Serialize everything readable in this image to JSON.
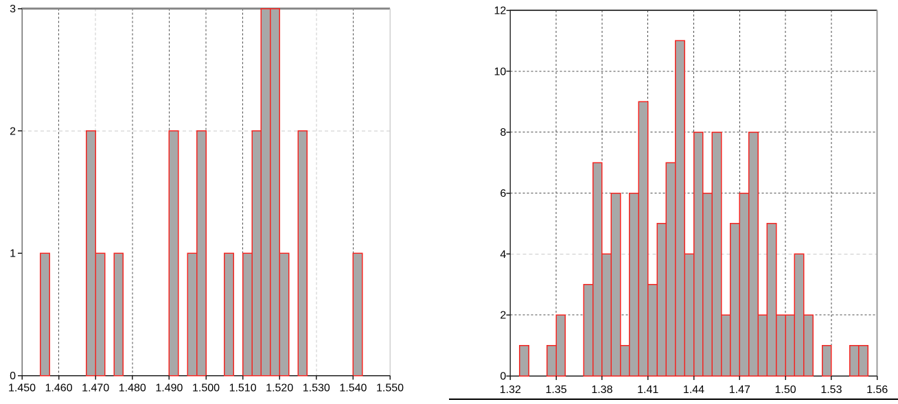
{
  "page": {
    "background": "#ffffff"
  },
  "panel_divider": {
    "present": true,
    "color": "#000000"
  },
  "style": {
    "bar_fill": "#a8a8a8",
    "bar_stroke": "#f42521",
    "grid_dark": "#4a4a4a",
    "grid_light": "#c9c9c9",
    "axis_color": "#1c1c1c",
    "left_plot_yaxis_color": "#6f6f6f",
    "left_plot_top_frame_color": "#8a8a8a",
    "left_plot_right_frame_color": "#cfcfcf",
    "right_plot_yaxis_color": "#2e2e2e",
    "right_plot_top_frame_color": "#3f3f3f",
    "right_plot_right_frame_color": "#9b9b9b",
    "tick_label_color": "#000000"
  },
  "chart_data": [
    {
      "type": "bar",
      "subtype": "histogram",
      "title": "",
      "xlabel": "",
      "ylabel": "",
      "xlim": [
        1.45,
        1.55
      ],
      "ylim": [
        0,
        3
      ],
      "grid": true,
      "legend_position": "none",
      "bin_width": 0.0025,
      "bars": [
        {
          "x0": 1.455,
          "count": 1
        },
        {
          "x0": 1.4675,
          "count": 2
        },
        {
          "x0": 1.47,
          "count": 1
        },
        {
          "x0": 1.475,
          "count": 1
        },
        {
          "x0": 1.49,
          "count": 2
        },
        {
          "x0": 1.495,
          "count": 1
        },
        {
          "x0": 1.4975,
          "count": 2
        },
        {
          "x0": 1.505,
          "count": 1
        },
        {
          "x0": 1.51,
          "count": 1
        },
        {
          "x0": 1.5125,
          "count": 2
        },
        {
          "x0": 1.515,
          "count": 3
        },
        {
          "x0": 1.5175,
          "count": 3
        },
        {
          "x0": 1.52,
          "count": 1
        },
        {
          "x0": 1.525,
          "count": 2
        },
        {
          "x0": 1.54,
          "count": 1
        }
      ],
      "x_ticks": [
        {
          "value": 1.45,
          "label": "1.450",
          "grid": "none"
        },
        {
          "value": 1.46,
          "label": "1.460",
          "grid": "dark"
        },
        {
          "value": 1.47,
          "label": "1.470",
          "grid": "light"
        },
        {
          "value": 1.48,
          "label": "1.480",
          "grid": "dark"
        },
        {
          "value": 1.49,
          "label": "1.490",
          "grid": "dark"
        },
        {
          "value": 1.5,
          "label": "1.500",
          "grid": "dark"
        },
        {
          "value": 1.51,
          "label": "1.510",
          "grid": "dark"
        },
        {
          "value": 1.52,
          "label": "1.520",
          "grid": "dark"
        },
        {
          "value": 1.53,
          "label": "1.530",
          "grid": "light"
        },
        {
          "value": 1.54,
          "label": "1.540",
          "grid": "dark"
        },
        {
          "value": 1.55,
          "label": "1.550",
          "grid": "none"
        }
      ],
      "y_ticks": [
        {
          "value": 0,
          "label": "0",
          "grid": "none"
        },
        {
          "value": 1,
          "label": "1",
          "grid": "none"
        },
        {
          "value": 2,
          "label": "2",
          "grid": "light"
        },
        {
          "value": 3,
          "label": "3",
          "grid": "none"
        }
      ]
    },
    {
      "type": "bar",
      "subtype": "histogram",
      "title": "",
      "xlabel": "",
      "ylabel": "",
      "xlim": [
        1.32,
        1.56
      ],
      "ylim": [
        0,
        12
      ],
      "grid": true,
      "legend_position": "none",
      "bin_width": 0.006,
      "bars": [
        {
          "x0": 1.326,
          "count": 1
        },
        {
          "x0": 1.344,
          "count": 1
        },
        {
          "x0": 1.35,
          "count": 2
        },
        {
          "x0": 1.368,
          "count": 3
        },
        {
          "x0": 1.374,
          "count": 7
        },
        {
          "x0": 1.38,
          "count": 4
        },
        {
          "x0": 1.386,
          "count": 6
        },
        {
          "x0": 1.392,
          "count": 1
        },
        {
          "x0": 1.398,
          "count": 6
        },
        {
          "x0": 1.404,
          "count": 9
        },
        {
          "x0": 1.41,
          "count": 3
        },
        {
          "x0": 1.416,
          "count": 5
        },
        {
          "x0": 1.422,
          "count": 7
        },
        {
          "x0": 1.428,
          "count": 11
        },
        {
          "x0": 1.434,
          "count": 4
        },
        {
          "x0": 1.44,
          "count": 8
        },
        {
          "x0": 1.446,
          "count": 6
        },
        {
          "x0": 1.452,
          "count": 8
        },
        {
          "x0": 1.458,
          "count": 2
        },
        {
          "x0": 1.464,
          "count": 5
        },
        {
          "x0": 1.47,
          "count": 6
        },
        {
          "x0": 1.476,
          "count": 8
        },
        {
          "x0": 1.482,
          "count": 2
        },
        {
          "x0": 1.488,
          "count": 5
        },
        {
          "x0": 1.494,
          "count": 2
        },
        {
          "x0": 1.5,
          "count": 2
        },
        {
          "x0": 1.506,
          "count": 4
        },
        {
          "x0": 1.512,
          "count": 2
        },
        {
          "x0": 1.524,
          "count": 1
        },
        {
          "x0": 1.542,
          "count": 1
        },
        {
          "x0": 1.548,
          "count": 1
        }
      ],
      "x_ticks": [
        {
          "value": 1.32,
          "label": "1.32",
          "grid": "none"
        },
        {
          "value": 1.35,
          "label": "1.35",
          "grid": "dark"
        },
        {
          "value": 1.38,
          "label": "1.38",
          "grid": "dark"
        },
        {
          "value": 1.41,
          "label": "1.41",
          "grid": "dark"
        },
        {
          "value": 1.44,
          "label": "1.44",
          "grid": "dark"
        },
        {
          "value": 1.47,
          "label": "1.47",
          "grid": "dark"
        },
        {
          "value": 1.5,
          "label": "1.50",
          "grid": "dark"
        },
        {
          "value": 1.53,
          "label": "1.53",
          "grid": "dark"
        },
        {
          "value": 1.56,
          "label": "1.56",
          "grid": "none"
        }
      ],
      "y_ticks": [
        {
          "value": 0,
          "label": "0",
          "grid": "none"
        },
        {
          "value": 2,
          "label": "2",
          "grid": "dark"
        },
        {
          "value": 4,
          "label": "4",
          "grid": "light"
        },
        {
          "value": 6,
          "label": "6",
          "grid": "dark"
        },
        {
          "value": 8,
          "label": "8",
          "grid": "dark"
        },
        {
          "value": 10,
          "label": "10",
          "grid": "dark"
        },
        {
          "value": 12,
          "label": "12",
          "grid": "none"
        }
      ]
    }
  ]
}
